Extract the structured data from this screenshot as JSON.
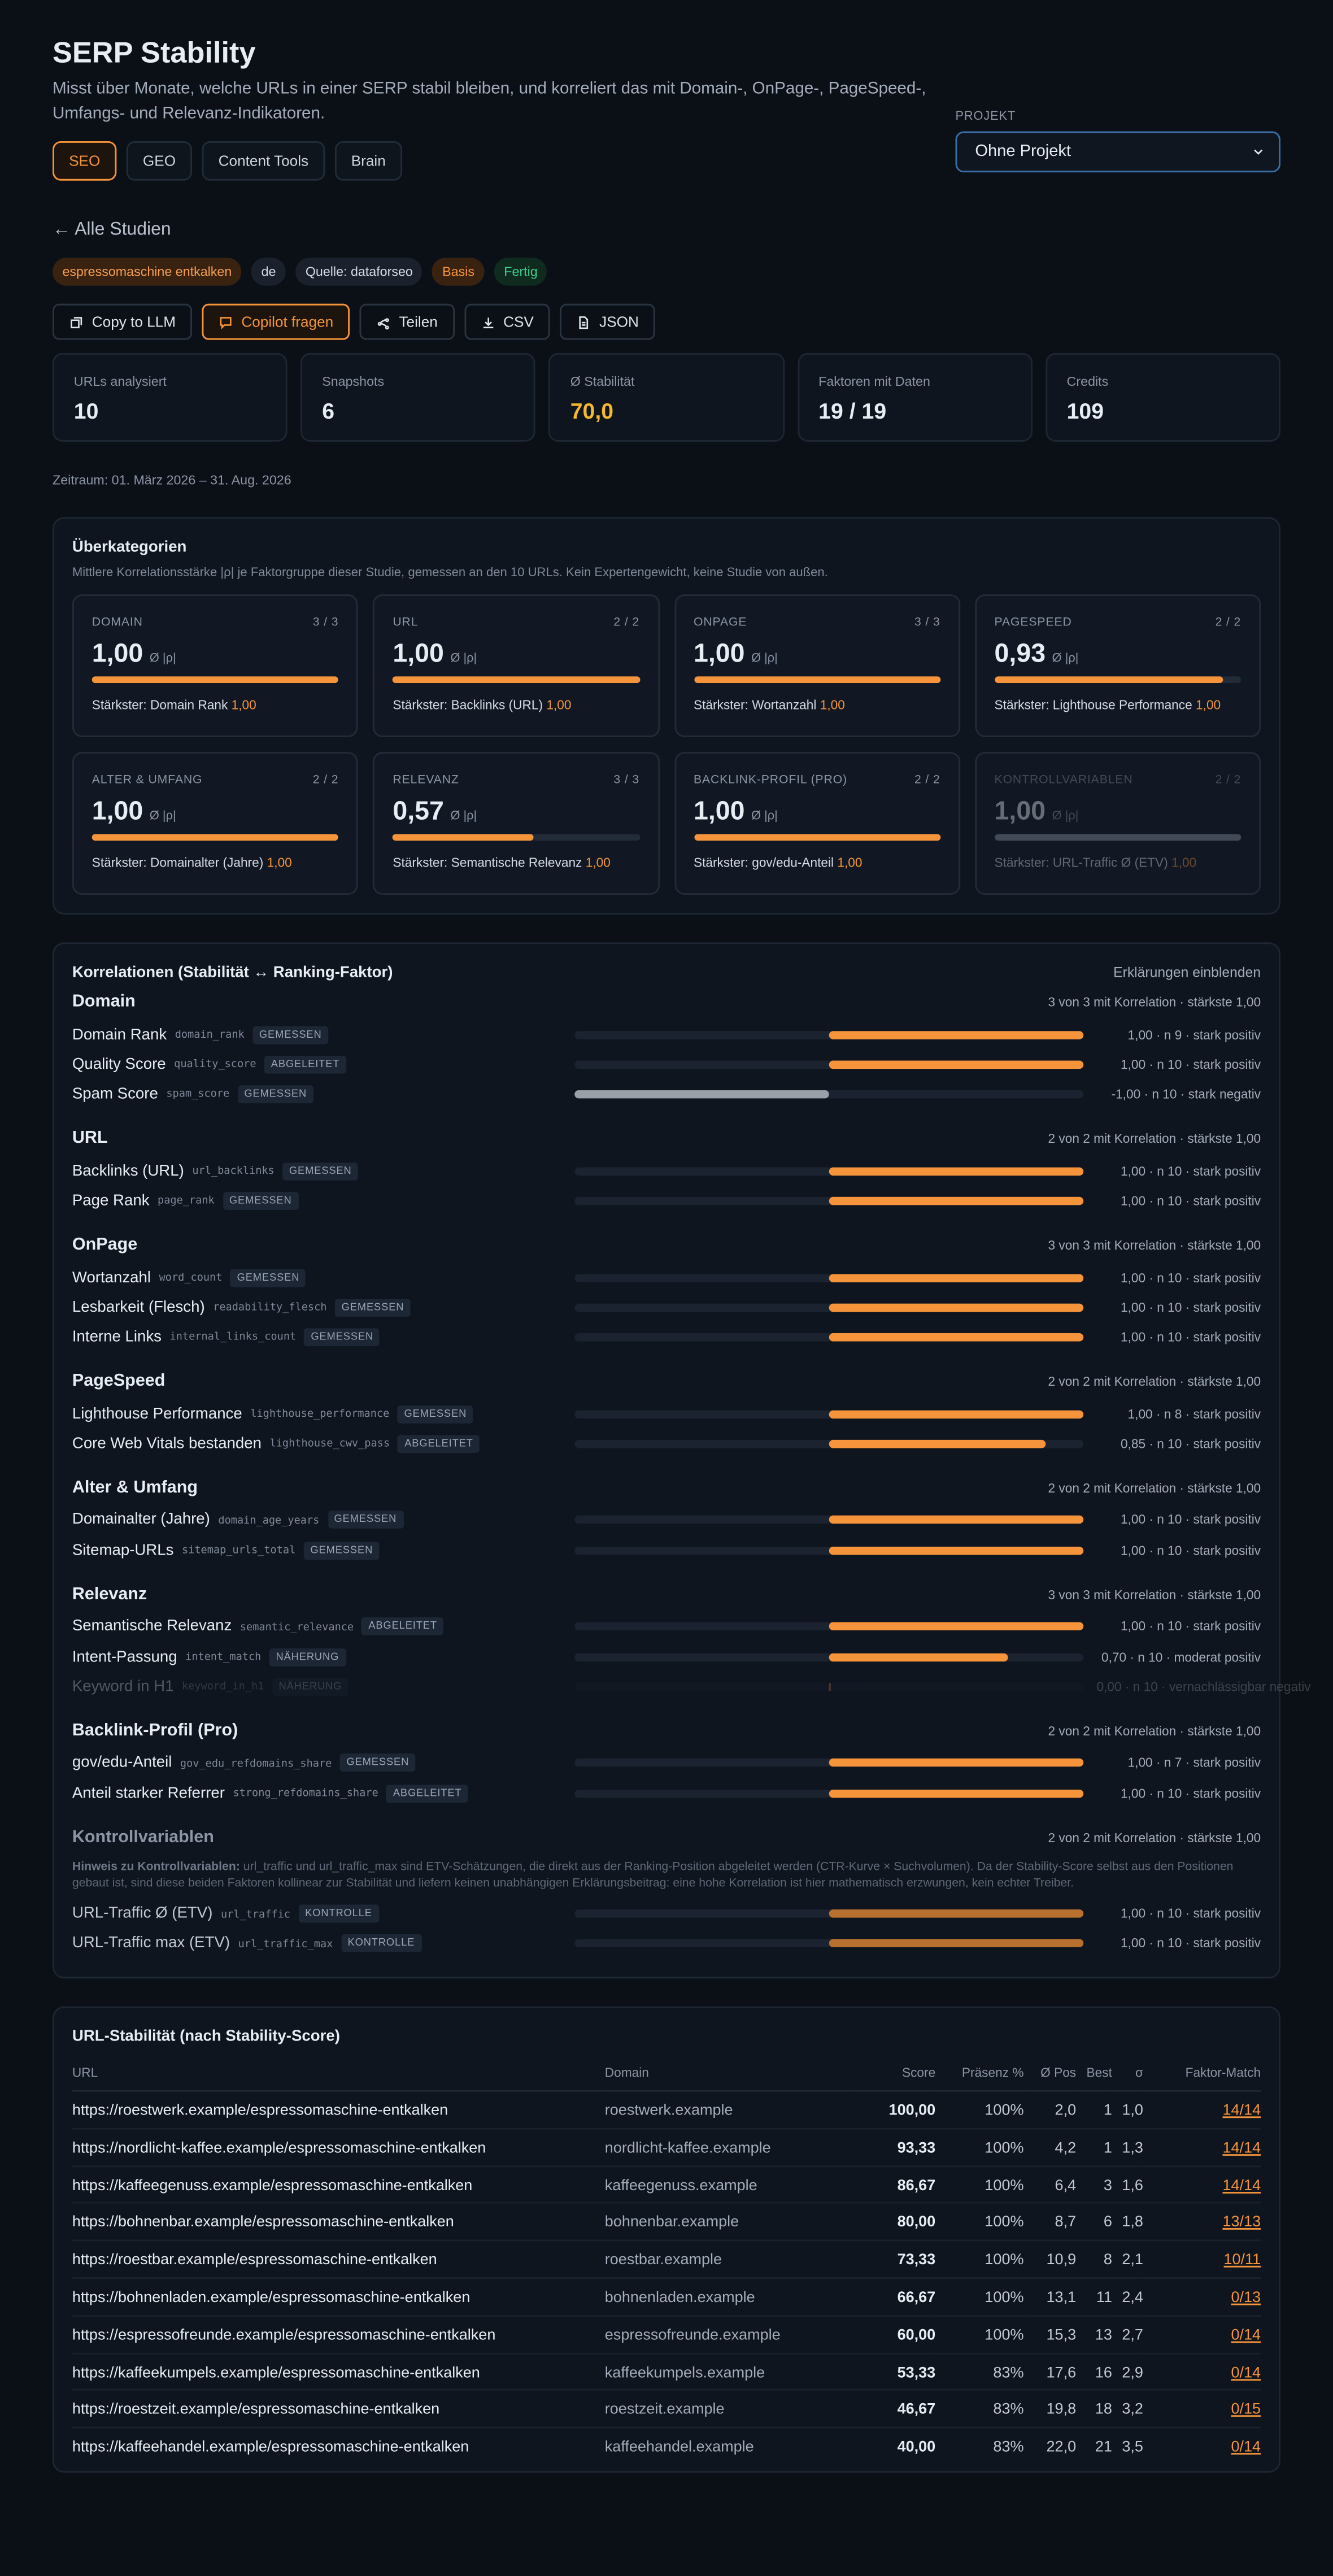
{
  "header": {
    "title": "SERP Stability",
    "subtitle": "Misst über Monate, welche URLs in einer SERP stabil bleiben, und korreliert das mit Domain-, OnPage-, PageSpeed-, Umfangs- und Relevanz-Indikatoren.",
    "tabs": [
      "SEO",
      "GEO",
      "Content Tools",
      "Brain"
    ],
    "project_label": "PROJEKT",
    "project_select": "Ohne Projekt"
  },
  "back_link": "← Alle Studien",
  "tags": [
    "espressomaschine entkalken",
    "de",
    "Quelle: dataforseo",
    "Basis",
    "Fertig"
  ],
  "actions": [
    "Copy to LLM",
    "Copilot fragen",
    "Teilen",
    "CSV",
    "JSON"
  ],
  "kpis": [
    {
      "label": "URLs analysiert",
      "value": "10"
    },
    {
      "label": "Snapshots",
      "value": "6"
    },
    {
      "label": "Ø Stabilität",
      "value": "70,0"
    },
    {
      "label": "Faktoren mit Daten",
      "value": "19 / 19"
    },
    {
      "label": "Credits",
      "value": "109"
    }
  ],
  "period": "Zeitraum: 01. März 2026 – 31. Aug. 2026",
  "categories_panel": {
    "title": "Überkategorien",
    "subtitle": "Mittlere Korrelationsstärke |ρ| je Faktorgruppe dieser Studie, gemessen an den 10 URLs. Kein Expertengewicht, keine Studie von außen.",
    "unit": "Ø |ρ|",
    "cards": [
      {
        "name": "DOMAIN",
        "count": "3 / 3",
        "score": 1.0,
        "value_label": "1,00",
        "strongest": "Stärkster: Domain Rank",
        "strongest_value": "1,00"
      },
      {
        "name": "URL",
        "count": "2 / 2",
        "score": 1.0,
        "value_label": "1,00",
        "strongest": "Stärkster: Backlinks (URL)",
        "strongest_value": "1,00"
      },
      {
        "name": "ONPAGE",
        "count": "3 / 3",
        "score": 1.0,
        "value_label": "1,00",
        "strongest": "Stärkster: Wortanzahl",
        "strongest_value": "1,00"
      },
      {
        "name": "PAGESPEED",
        "count": "2 / 2",
        "score": 0.93,
        "value_label": "0,93",
        "strongest": "Stärkster: Lighthouse Performance",
        "strongest_value": "1,00"
      },
      {
        "name": "ALTER & UMFANG",
        "count": "2 / 2",
        "score": 1.0,
        "value_label": "1,00",
        "strongest": "Stärkster: Domainalter (Jahre)",
        "strongest_value": "1,00"
      },
      {
        "name": "RELEVANZ",
        "count": "3 / 3",
        "score": 0.57,
        "value_label": "0,57",
        "strongest": "Stärkster: Semantische Relevanz",
        "strongest_value": "1,00"
      },
      {
        "name": "BACKLINK-PROFIL (PRO)",
        "count": "2 / 2",
        "score": 1.0,
        "value_label": "1,00",
        "strongest": "Stärkster: gov/edu-Anteil",
        "strongest_value": "1,00"
      },
      {
        "name": "KONTROLLVARIABLEN",
        "count": "2 / 2",
        "score": 1.0,
        "value_label": "1,00",
        "strongest": "Stärkster: URL-Traffic Ø (ETV)",
        "strongest_value": "1,00",
        "muted": true
      }
    ]
  },
  "correlations": {
    "title": "Korrelationen (Stabilität ↔ Ranking-Faktor)",
    "toggle": "Erklärungen einblenden",
    "groups": [
      {
        "name": "Domain",
        "summary": "3 von 3 mit Korrelation · stärkste 1,00",
        "rows": [
          {
            "label": "Domain Rank",
            "key": "domain_rank",
            "badge": "GEMESSEN",
            "r": 1.0,
            "stat": "1,00 · n 9 · stark positiv"
          },
          {
            "label": "Quality Score",
            "key": "quality_score",
            "badge": "ABGELEITET",
            "r": 1.0,
            "stat": "1,00 · n 10 · stark positiv"
          },
          {
            "label": "Spam Score",
            "key": "spam_score",
            "badge": "GEMESSEN",
            "r": -1.0,
            "stat": "-1,00 · n 10 · stark negativ"
          }
        ]
      },
      {
        "name": "URL",
        "summary": "2 von 2 mit Korrelation · stärkste 1,00",
        "rows": [
          {
            "label": "Backlinks (URL)",
            "key": "url_backlinks",
            "badge": "GEMESSEN",
            "r": 1.0,
            "stat": "1,00 · n 10 · stark positiv"
          },
          {
            "label": "Page Rank",
            "key": "page_rank",
            "badge": "GEMESSEN",
            "r": 1.0,
            "stat": "1,00 · n 10 · stark positiv"
          }
        ]
      },
      {
        "name": "OnPage",
        "summary": "3 von 3 mit Korrelation · stärkste 1,00",
        "rows": [
          {
            "label": "Wortanzahl",
            "key": "word_count",
            "badge": "GEMESSEN",
            "r": 1.0,
            "stat": "1,00 · n 10 · stark positiv"
          },
          {
            "label": "Lesbarkeit (Flesch)",
            "key": "readability_flesch",
            "badge": "GEMESSEN",
            "r": 1.0,
            "stat": "1,00 · n 10 · stark positiv"
          },
          {
            "label": "Interne Links",
            "key": "internal_links_count",
            "badge": "GEMESSEN",
            "r": 1.0,
            "stat": "1,00 · n 10 · stark positiv"
          }
        ]
      },
      {
        "name": "PageSpeed",
        "summary": "2 von 2 mit Korrelation · stärkste 1,00",
        "rows": [
          {
            "label": "Lighthouse Performance",
            "key": "lighthouse_performance",
            "badge": "GEMESSEN",
            "r": 1.0,
            "stat": "1,00 · n 8 · stark positiv"
          },
          {
            "label": "Core Web Vitals bestanden",
            "key": "lighthouse_cwv_pass",
            "badge": "ABGELEITET",
            "r": 0.85,
            "stat": "0,85 · n 10 · stark positiv"
          }
        ]
      },
      {
        "name": "Alter & Umfang",
        "summary": "2 von 2 mit Korrelation · stärkste 1,00",
        "rows": [
          {
            "label": "Domainalter (Jahre)",
            "key": "domain_age_years",
            "badge": "GEMESSEN",
            "r": 1.0,
            "stat": "1,00 · n 10 · stark positiv"
          },
          {
            "label": "Sitemap-URLs",
            "key": "sitemap_urls_total",
            "badge": "GEMESSEN",
            "r": 1.0,
            "stat": "1,00 · n 10 · stark positiv"
          }
        ]
      },
      {
        "name": "Relevanz",
        "summary": "3 von 3 mit Korrelation · stärkste 1,00",
        "rows": [
          {
            "label": "Semantische Relevanz",
            "key": "semantic_relevance",
            "badge": "ABGELEITET",
            "r": 1.0,
            "stat": "1,00 · n 10 · stark positiv"
          },
          {
            "label": "Intent-Passung",
            "key": "intent_match",
            "badge": "NÄHERUNG",
            "r": 0.7,
            "stat": "0,70 · n 10 · moderat positiv"
          },
          {
            "label": "Keyword in H1",
            "key": "keyword_in_h1",
            "badge": "NÄHERUNG",
            "r": 0.0,
            "stat": "0,00 · n 10 · vernachlässigbar negativ",
            "muted": true
          }
        ]
      },
      {
        "name": "Backlink-Profil (Pro)",
        "summary": "2 von 2 mit Korrelation · stärkste 1,00",
        "rows": [
          {
            "label": "gov/edu-Anteil",
            "key": "gov_edu_refdomains_share",
            "badge": "GEMESSEN",
            "r": 1.0,
            "stat": "1,00 · n 7 · stark positiv"
          },
          {
            "label": "Anteil starker Referrer",
            "key": "strong_refdomains_share",
            "badge": "ABGELEITET",
            "r": 1.0,
            "stat": "1,00 · n 10 · stark positiv"
          }
        ]
      },
      {
        "name": "Kontrollvariablen",
        "summary": "2 von 2 mit Korrelation · stärkste 1,00",
        "muted": true,
        "note_label": "Hinweis zu Kontrollvariablen:",
        "note_text": "url_traffic und url_traffic_max sind ETV-Schätzungen, die direkt aus der Ranking-Position abgeleitet werden (CTR-Kurve × Suchvolumen). Da der Stability-Score selbst aus den Positionen gebaut ist, sind diese beiden Faktoren kollinear zur Stabilität und liefern keinen unabhängigen Erklärungsbeitrag: eine hohe Korrelation ist hier mathematisch erzwungen, kein echter Treiber.",
        "rows": [
          {
            "label": "URL-Traffic Ø (ETV)",
            "key": "url_traffic",
            "badge": "KONTROLLE",
            "r": 1.0,
            "stat": "1,00 · n 10 · stark positiv"
          },
          {
            "label": "URL-Traffic max (ETV)",
            "key": "url_traffic_max",
            "badge": "KONTROLLE",
            "r": 1.0,
            "stat": "1,00 · n 10 · stark positiv"
          }
        ]
      }
    ]
  },
  "table": {
    "title": "URL-Stabilität (nach Stability-Score)",
    "columns": [
      "URL",
      "Domain",
      "Score",
      "Präsenz %",
      "Ø Pos",
      "Best",
      "σ",
      "Faktor-Match"
    ],
    "rows": [
      [
        "https://roestwerk.example/espressomaschine-entkalken",
        "roestwerk.example",
        "100,00",
        "100%",
        "2,0",
        "1",
        "1,0",
        "14/14"
      ],
      [
        "https://nordlicht-kaffee.example/espressomaschine-entkalken",
        "nordlicht-kaffee.example",
        "93,33",
        "100%",
        "4,2",
        "1",
        "1,3",
        "14/14"
      ],
      [
        "https://kaffeegenuss.example/espressomaschine-entkalken",
        "kaffeegenuss.example",
        "86,67",
        "100%",
        "6,4",
        "3",
        "1,6",
        "14/14"
      ],
      [
        "https://bohnenbar.example/espressomaschine-entkalken",
        "bohnenbar.example",
        "80,00",
        "100%",
        "8,7",
        "6",
        "1,8",
        "13/13"
      ],
      [
        "https://roestbar.example/espressomaschine-entkalken",
        "roestbar.example",
        "73,33",
        "100%",
        "10,9",
        "8",
        "2,1",
        "10/11"
      ],
      [
        "https://bohnenladen.example/espressomaschine-entkalken",
        "bohnenladen.example",
        "66,67",
        "100%",
        "13,1",
        "11",
        "2,4",
        "0/13"
      ],
      [
        "https://espressofreunde.example/espressomaschine-entkalken",
        "espressofreunde.example",
        "60,00",
        "100%",
        "15,3",
        "13",
        "2,7",
        "0/14"
      ],
      [
        "https://kaffeekumpels.example/espressomaschine-entkalken",
        "kaffeekumpels.example",
        "53,33",
        "83%",
        "17,6",
        "16",
        "2,9",
        "0/14"
      ],
      [
        "https://roestzeit.example/espressomaschine-entkalken",
        "roestzeit.example",
        "46,67",
        "83%",
        "19,8",
        "18",
        "3,2",
        "0/15"
      ],
      [
        "https://kaffeehandel.example/espressomaschine-entkalken",
        "kaffeehandel.example",
        "40,00",
        "83%",
        "22,0",
        "21",
        "3,5",
        "0/14"
      ]
    ]
  }
}
